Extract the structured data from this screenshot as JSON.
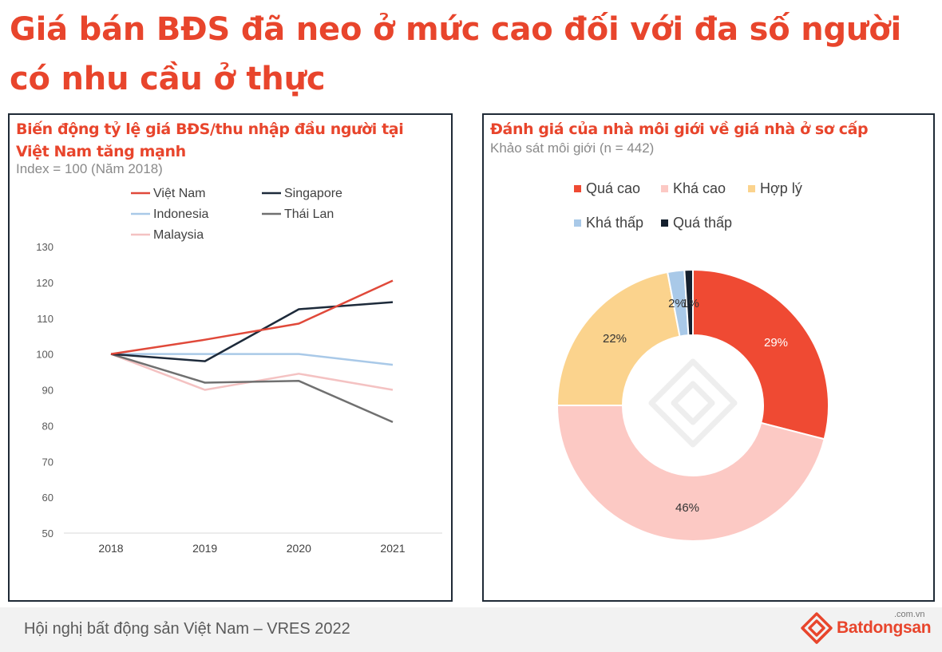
{
  "page": {
    "title": "Giá bán BĐS đã neo ở mức cao đối với đa số người có nhu cầu ở thực"
  },
  "left_panel": {
    "title": "Biến động tỷ lệ giá BĐS/thu nhập đầu người tại Việt Nam tăng mạnh",
    "subtitle": "Index = 100 (Năm 2018)"
  },
  "right_panel": {
    "title": "Đánh giá của nhà môi giới về giá nhà ở sơ cấp",
    "subtitle": "Khảo sát môi giới (n = 442)"
  },
  "footer": {
    "text": "Hội nghị bất động sản Việt Nam – VRES 2022",
    "brand_name": "Batdongsan",
    "brand_domain": ".com.vn"
  },
  "chart_data": [
    {
      "type": "line",
      "x": [
        "2018",
        "2019",
        "2020",
        "2021"
      ],
      "ylim": [
        50,
        130
      ],
      "yticks": [
        50,
        60,
        70,
        80,
        90,
        100,
        110,
        120,
        130
      ],
      "grid": false,
      "legend": "top",
      "series": [
        {
          "name": "Việt Nam",
          "color": "#e0493a",
          "values": [
            100,
            104,
            108.5,
            120.5
          ]
        },
        {
          "name": "Singapore",
          "color": "#1d2a3a",
          "values": [
            100,
            98,
            112.5,
            114.5
          ]
        },
        {
          "name": "Indonesia",
          "color": "#a9c9e8",
          "values": [
            100,
            100,
            100,
            97
          ]
        },
        {
          "name": "Thái Lan",
          "color": "#707070",
          "values": [
            100,
            92,
            92.5,
            81
          ]
        },
        {
          "name": "Malaysia",
          "color": "#f4c2c2",
          "values": [
            100,
            90,
            94.5,
            90
          ]
        }
      ]
    },
    {
      "type": "pie",
      "donut": true,
      "legend": "top",
      "labels": [
        "Quá cao",
        "Khá cao",
        "Hợp lý",
        "Khá thấp",
        "Quá thấp"
      ],
      "values": [
        29,
        46,
        22,
        2,
        1
      ],
      "colors": [
        "#ef4a33",
        "#fcc9c4",
        "#fbd38d",
        "#a9c9e8",
        "#15202e"
      ],
      "data_labels": [
        "29%",
        "46%",
        "22%",
        "2%",
        "1%"
      ]
    }
  ]
}
